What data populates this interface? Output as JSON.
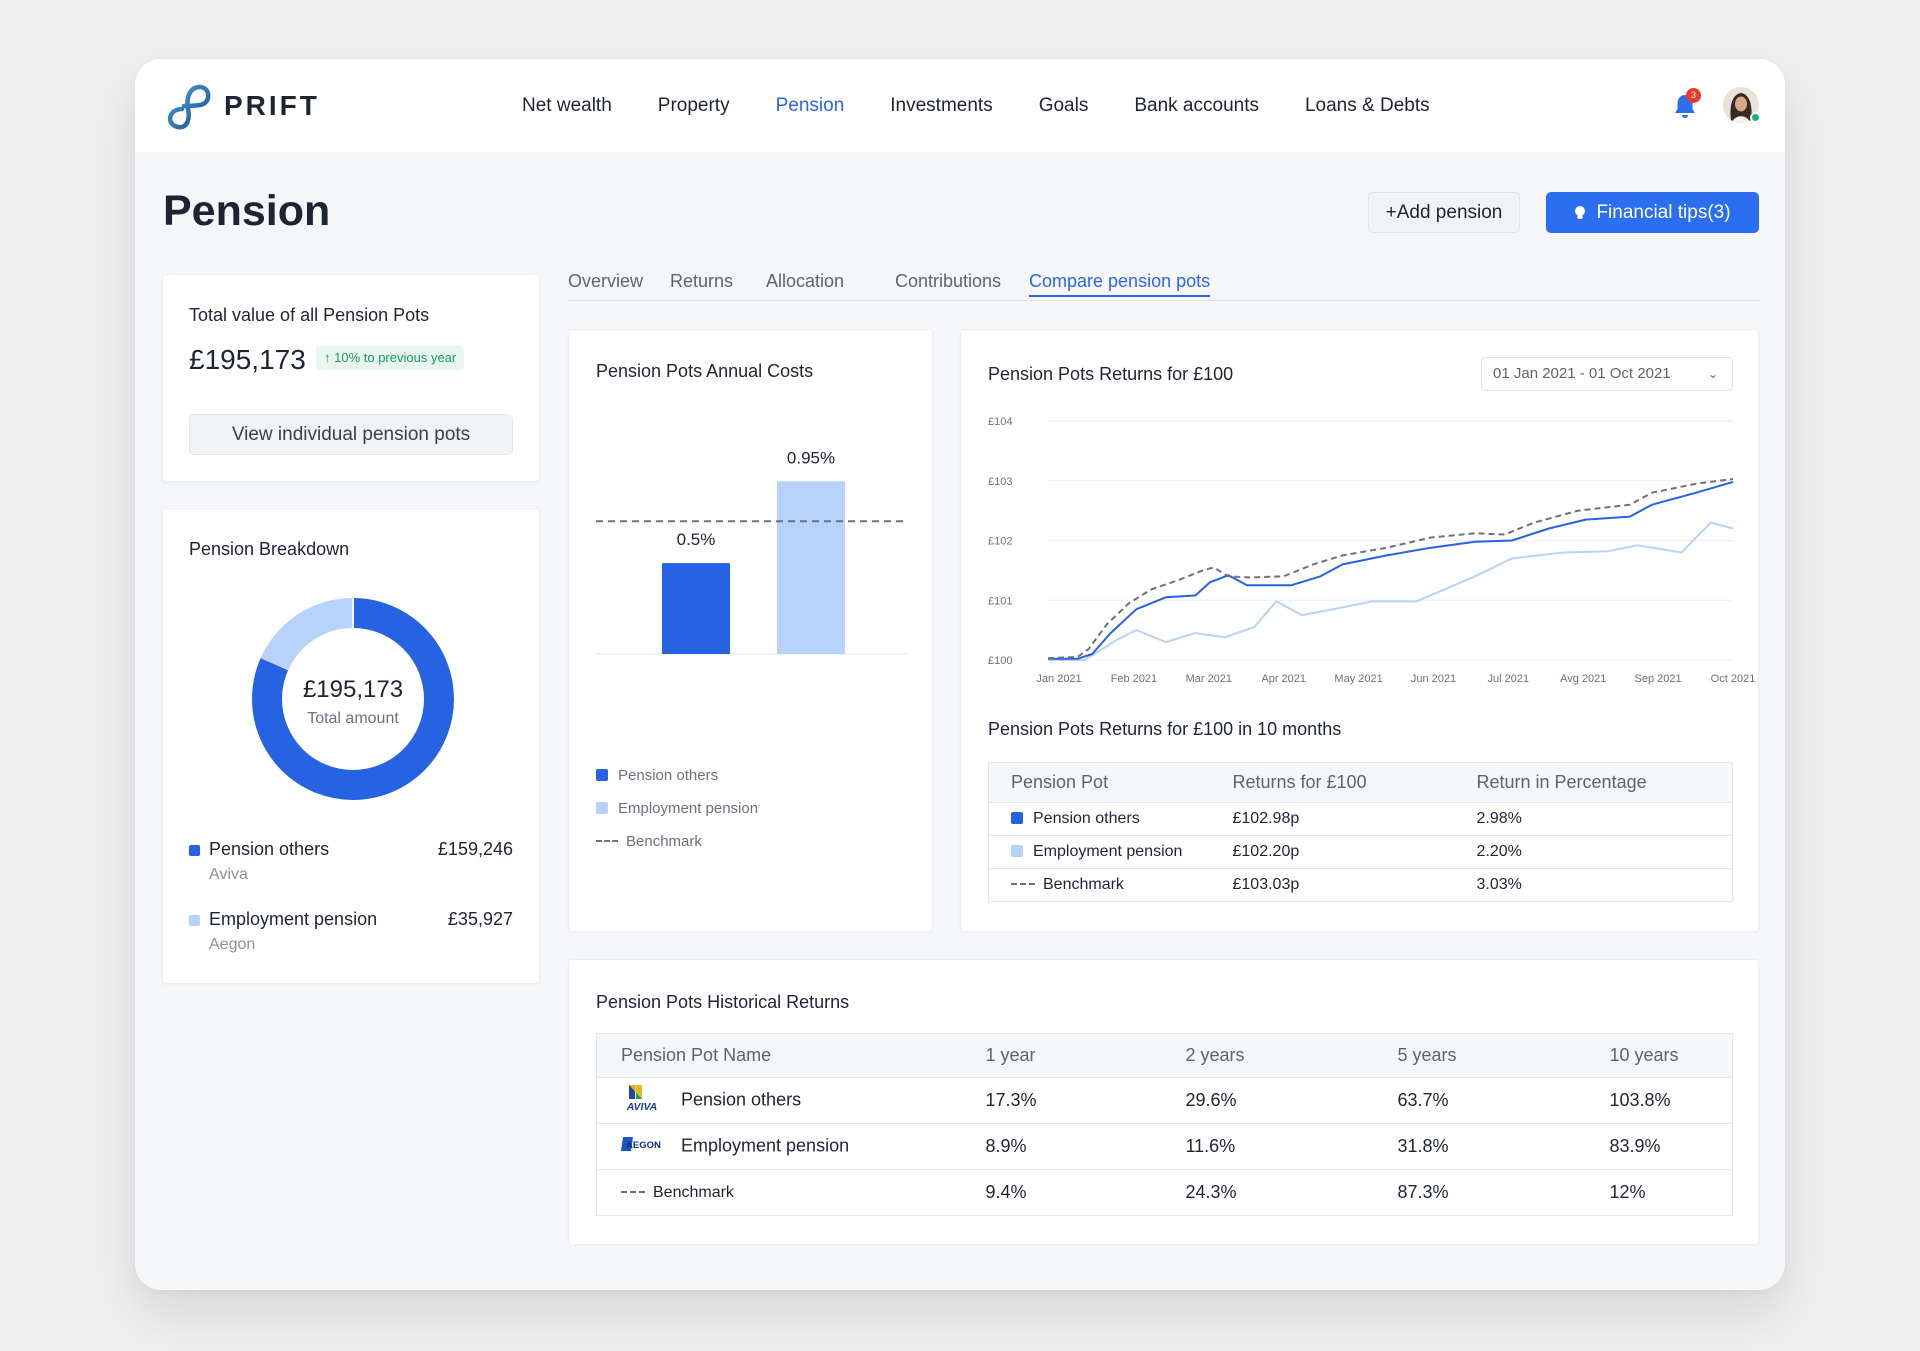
{
  "app": {
    "logo_text": "PRIFT"
  },
  "nav": {
    "items": [
      {
        "label": "Net wealth"
      },
      {
        "label": "Property"
      },
      {
        "label": "Pension"
      },
      {
        "label": "Investments"
      },
      {
        "label": "Goals"
      },
      {
        "label": "Bank accounts"
      },
      {
        "label": "Loans & Debts"
      }
    ],
    "active": "Pension"
  },
  "notifications": {
    "count": "3"
  },
  "page": {
    "title": "Pension",
    "add_label": "+Add pension",
    "tips_label": "Financial tips(3)"
  },
  "summary": {
    "title": "Total value of all Pension Pots",
    "value": "£195,173",
    "change": "↑ 10% to previous year",
    "view_label": "View individual pension pots"
  },
  "breakdown": {
    "title": "Pension Breakdown",
    "center_value": "£195,173",
    "center_label": "Total amount",
    "items": [
      {
        "name": "Pension others",
        "provider": "Aviva",
        "amount": "£159,246",
        "value": 159246,
        "color": "#2563e3"
      },
      {
        "name": "Employment pension",
        "provider": "Aegon",
        "amount": "£35,927",
        "value": 35927,
        "color": "#b7d3fb"
      }
    ]
  },
  "tabs": [
    {
      "label": "Overview"
    },
    {
      "label": "Returns"
    },
    {
      "label": "Allocation"
    },
    {
      "label": "Contributions"
    },
    {
      "label": "Compare pension pots"
    }
  ],
  "colors": {
    "primary": "#2563e3",
    "light": "#b7d3fb",
    "benchmark": "#6b7180",
    "accent": "#2b6ef0"
  },
  "annual_costs": {
    "title": "Pension Pots Annual Costs",
    "legend": [
      "Pension others",
      "Employment pension",
      "Benchmark"
    ]
  },
  "returns_chart": {
    "title": "Pension Pots Returns for £100",
    "date_range": "01 Jan 2021 - 01 Oct 2021"
  },
  "returns_table": {
    "title": "Pension Pots Returns for £100 in 10 months",
    "headers": [
      "Pension Pot",
      "Returns for £100",
      "Return in Percentage"
    ],
    "rows": [
      {
        "name": "Pension others",
        "returns": "£102.98p",
        "pct": "2.98%"
      },
      {
        "name": "Employment pension",
        "returns": "£102.20p",
        "pct": "2.20%"
      },
      {
        "name": "Benchmark",
        "returns": "£103.03p",
        "pct": "3.03%"
      }
    ]
  },
  "historical": {
    "title": "Pension Pots Historical Returns",
    "headers": [
      "Pension Pot Name",
      "1 year",
      "2 years",
      "5 years",
      "10 years"
    ],
    "rows": [
      {
        "logo": "AVIVA",
        "name": "Pension others",
        "y1": "17.3%",
        "y2": "29.6%",
        "y5": "63.7%",
        "y10": "103.8%"
      },
      {
        "logo": "AEGON",
        "name": "Employment pension",
        "y1": "8.9%",
        "y2": "11.6%",
        "y5": "31.8%",
        "y10": "83.9%"
      },
      {
        "logo": "",
        "name": "Benchmark",
        "y1": "9.4%",
        "y2": "24.3%",
        "y5": "87.3%",
        "y10": "12%"
      }
    ]
  },
  "chart_data": [
    {
      "type": "bar",
      "title": "Pension Pots Annual Costs",
      "categories": [
        "Pension others",
        "Employment pension"
      ],
      "values": [
        0.5,
        0.95
      ],
      "labels": [
        "0.5%",
        "0.95%"
      ],
      "benchmark": 0.73,
      "ylim": [
        0,
        1.1
      ],
      "grid": false,
      "legend": [
        "Pension others",
        "Employment pension",
        "Benchmark"
      ],
      "legend_position": "bottom"
    },
    {
      "type": "line",
      "title": "Pension Pots Returns for £100",
      "x_ticks": [
        "Jan 2021",
        "Feb 2021",
        "Mar 2021",
        "Apr 2021",
        "May 2021",
        "Jun 2021",
        "Jul 2021",
        "Avg 2021",
        "Sep 2021",
        "Oct 2021"
      ],
      "y_ticks": [
        "£100",
        "£101",
        "£102",
        "£103",
        "£104"
      ],
      "ylim": [
        100,
        104
      ],
      "xlim": [
        0,
        9.3
      ],
      "grid": true,
      "series": [
        {
          "name": "Benchmark",
          "style": "dashed",
          "color": "#6b7180",
          "points": [
            [
              0,
              100.03
            ],
            [
              0.4,
              100.05
            ],
            [
              0.55,
              100.18
            ],
            [
              0.8,
              100.6
            ],
            [
              1.1,
              100.95
            ],
            [
              1.4,
              101.18
            ],
            [
              1.8,
              101.35
            ],
            [
              2.1,
              101.5
            ],
            [
              2.25,
              101.55
            ],
            [
              2.45,
              101.4
            ],
            [
              2.75,
              101.38
            ],
            [
              3.2,
              101.4
            ],
            [
              3.6,
              101.6
            ],
            [
              4.0,
              101.75
            ],
            [
              4.6,
              101.88
            ],
            [
              5.2,
              102.05
            ],
            [
              5.8,
              102.12
            ],
            [
              6.2,
              102.1
            ],
            [
              6.6,
              102.3
            ],
            [
              7.2,
              102.5
            ],
            [
              7.9,
              102.6
            ],
            [
              8.2,
              102.8
            ],
            [
              8.8,
              102.95
            ],
            [
              9.3,
              103.03
            ]
          ]
        },
        {
          "name": "Pension others",
          "style": "solid",
          "color": "#2563e3",
          "points": [
            [
              0,
              100.02
            ],
            [
              0.4,
              100.02
            ],
            [
              0.6,
              100.1
            ],
            [
              0.85,
              100.45
            ],
            [
              1.2,
              100.85
            ],
            [
              1.6,
              101.05
            ],
            [
              2.0,
              101.08
            ],
            [
              2.2,
              101.3
            ],
            [
              2.45,
              101.42
            ],
            [
              2.7,
              101.25
            ],
            [
              3.3,
              101.25
            ],
            [
              3.7,
              101.4
            ],
            [
              4.0,
              101.6
            ],
            [
              4.6,
              101.75
            ],
            [
              5.2,
              101.88
            ],
            [
              5.8,
              101.98
            ],
            [
              6.3,
              102.0
            ],
            [
              6.8,
              102.2
            ],
            [
              7.3,
              102.35
            ],
            [
              7.9,
              102.4
            ],
            [
              8.2,
              102.6
            ],
            [
              8.8,
              102.8
            ],
            [
              9.3,
              102.98
            ]
          ]
        },
        {
          "name": "Employment pension",
          "style": "solid",
          "color": "#b7d3fb",
          "points": [
            [
              0,
              100.0
            ],
            [
              0.5,
              100.0
            ],
            [
              0.95,
              100.35
            ],
            [
              1.2,
              100.5
            ],
            [
              1.6,
              100.3
            ],
            [
              2.0,
              100.45
            ],
            [
              2.4,
              100.38
            ],
            [
              2.8,
              100.55
            ],
            [
              3.1,
              100.98
            ],
            [
              3.45,
              100.75
            ],
            [
              4.0,
              100.88
            ],
            [
              4.4,
              100.98
            ],
            [
              5.0,
              100.98
            ],
            [
              5.8,
              101.4
            ],
            [
              6.3,
              101.7
            ],
            [
              7.0,
              101.8
            ],
            [
              7.6,
              101.82
            ],
            [
              8.0,
              101.92
            ],
            [
              8.6,
              101.8
            ],
            [
              9.0,
              102.3
            ],
            [
              9.3,
              102.2
            ]
          ]
        }
      ]
    },
    {
      "type": "pie",
      "title": "Pension Breakdown",
      "labels": [
        "Pension others",
        "Employment pension"
      ],
      "values": [
        159246,
        35927
      ],
      "center_text": [
        "£195,173",
        "Total amount"
      ]
    }
  ]
}
